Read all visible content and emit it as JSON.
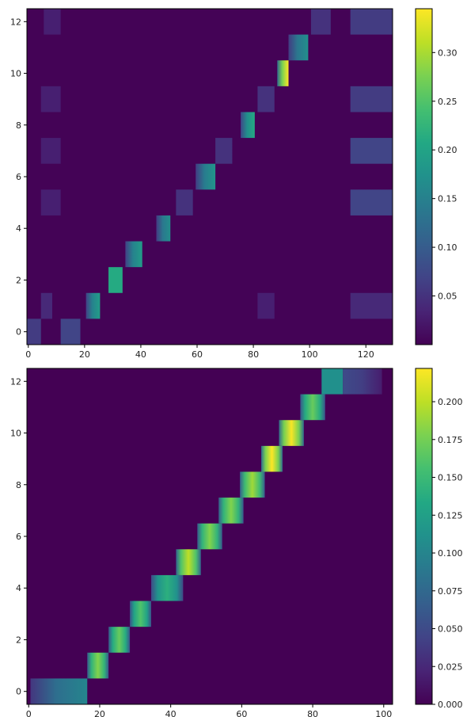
{
  "chart_data": [
    {
      "type": "heatmap",
      "colormap": "viridis",
      "x_ticks": [
        0,
        20,
        40,
        60,
        80,
        100,
        120
      ],
      "y_ticks": [
        0,
        2,
        4,
        6,
        8,
        10,
        12
      ],
      "xlim": [
        -0.5,
        129.5
      ],
      "ylim": [
        -0.5,
        12.5
      ],
      "colorbar": {
        "min": 0.0,
        "max": 0.345,
        "ticks": [
          "0.05",
          "0.10",
          "0.15",
          "0.20",
          "0.25",
          "0.30"
        ]
      },
      "background_value": 0.002,
      "blocks": [
        {
          "row": 0,
          "x": [
            -0.5,
            4.5
          ],
          "peak": 0.06,
          "ramp": "flat"
        },
        {
          "row": 0,
          "x": [
            11.5,
            18.5
          ],
          "peak": 0.07,
          "ramp": "flat"
        },
        {
          "row": 1,
          "x": [
            20.5,
            25.5
          ],
          "peak": 0.19,
          "ramp": "right"
        },
        {
          "row": 2,
          "x": [
            28.5,
            33.5
          ],
          "peak": 0.21,
          "ramp": "flat"
        },
        {
          "row": 3,
          "x": [
            34.5,
            40.5
          ],
          "peak": 0.19,
          "ramp": "right"
        },
        {
          "row": 4,
          "x": [
            45.5,
            50.5
          ],
          "peak": 0.17,
          "ramp": "right"
        },
        {
          "row": 5,
          "x": [
            52.5,
            58.5
          ],
          "peak": 0.05,
          "ramp": "flat"
        },
        {
          "row": 6,
          "x": [
            59.5,
            66.5
          ],
          "peak": 0.18,
          "ramp": "right"
        },
        {
          "row": 7,
          "x": [
            66.5,
            72.5
          ],
          "peak": 0.05,
          "ramp": "flat"
        },
        {
          "row": 8,
          "x": [
            75.5,
            80.5
          ],
          "peak": 0.21,
          "ramp": "right"
        },
        {
          "row": 9,
          "x": [
            81.5,
            87.5
          ],
          "peak": 0.05,
          "ramp": "flat"
        },
        {
          "row": 10,
          "x": [
            88.5,
            92.5
          ],
          "peak": 0.345,
          "ramp": "right"
        },
        {
          "row": 11,
          "x": [
            92.5,
            99.5
          ],
          "peak": 0.17,
          "ramp": "right"
        },
        {
          "row": 12,
          "x": [
            100.5,
            107.5
          ],
          "peak": 0.05,
          "ramp": "flat"
        },
        {
          "row": 12,
          "x": [
            114.5,
            129.5
          ],
          "peak": 0.06,
          "ramp": "flat"
        },
        {
          "row": 9,
          "x": [
            114.5,
            129.5
          ],
          "peak": 0.06,
          "ramp": "flat"
        },
        {
          "row": 7,
          "x": [
            114.5,
            129.5
          ],
          "peak": 0.07,
          "ramp": "flat"
        },
        {
          "row": 5,
          "x": [
            114.5,
            129.5
          ],
          "peak": 0.07,
          "ramp": "flat"
        },
        {
          "row": 1,
          "x": [
            114.5,
            129.5
          ],
          "peak": 0.04,
          "ramp": "flat"
        },
        {
          "row": 1,
          "x": [
            4.5,
            8.5
          ],
          "peak": 0.04,
          "ramp": "flat"
        },
        {
          "row": 5,
          "x": [
            4.5,
            11.5
          ],
          "peak": 0.03,
          "ramp": "flat"
        },
        {
          "row": 7,
          "x": [
            4.5,
            11.5
          ],
          "peak": 0.03,
          "ramp": "flat"
        },
        {
          "row": 9,
          "x": [
            4.5,
            11.5
          ],
          "peak": 0.03,
          "ramp": "flat"
        },
        {
          "row": 12,
          "x": [
            5.5,
            11.5
          ],
          "peak": 0.03,
          "ramp": "flat"
        },
        {
          "row": 1,
          "x": [
            81.5,
            87.5
          ],
          "peak": 0.03,
          "ramp": "flat"
        }
      ]
    },
    {
      "type": "heatmap",
      "colormap": "viridis",
      "x_ticks": [
        0,
        20,
        40,
        60,
        80,
        100
      ],
      "y_ticks": [
        0,
        2,
        4,
        6,
        8,
        10,
        12
      ],
      "xlim": [
        -0.5,
        102.5
      ],
      "ylim": [
        -0.5,
        12.5
      ],
      "colorbar": {
        "min": 0.0,
        "max": 0.222,
        "ticks": [
          "0.000",
          "0.025",
          "0.050",
          "0.075",
          "0.100",
          "0.125",
          "0.150",
          "0.175",
          "0.200"
        ]
      },
      "background_value": 0.0,
      "blocks": [
        {
          "row": 0,
          "x": [
            0.5,
            16.5
          ],
          "peak": 0.1,
          "ramp": "right"
        },
        {
          "row": 1,
          "x": [
            16.5,
            22.5
          ],
          "peak": 0.18,
          "ramp": "center"
        },
        {
          "row": 2,
          "x": [
            22.5,
            28.5
          ],
          "peak": 0.17,
          "ramp": "center"
        },
        {
          "row": 3,
          "x": [
            28.5,
            34.5
          ],
          "peak": 0.16,
          "ramp": "center"
        },
        {
          "row": 4,
          "x": [
            34.5,
            43.5
          ],
          "peak": 0.14,
          "ramp": "center"
        },
        {
          "row": 5,
          "x": [
            41.5,
            48.5
          ],
          "peak": 0.2,
          "ramp": "center"
        },
        {
          "row": 6,
          "x": [
            47.5,
            54.5
          ],
          "peak": 0.18,
          "ramp": "center"
        },
        {
          "row": 7,
          "x": [
            53.5,
            60.5
          ],
          "peak": 0.18,
          "ramp": "center"
        },
        {
          "row": 8,
          "x": [
            59.5,
            66.5
          ],
          "peak": 0.19,
          "ramp": "center"
        },
        {
          "row": 9,
          "x": [
            65.5,
            71.5
          ],
          "peak": 0.222,
          "ramp": "center"
        },
        {
          "row": 10,
          "x": [
            70.5,
            77.5
          ],
          "peak": 0.22,
          "ramp": "center"
        },
        {
          "row": 11,
          "x": [
            76.5,
            83.5
          ],
          "peak": 0.17,
          "ramp": "center"
        },
        {
          "row": 12,
          "x": [
            82.5,
            88.5
          ],
          "peak": 0.11,
          "ramp": "flat"
        },
        {
          "row": 12,
          "x": [
            88.5,
            99.5
          ],
          "peak": 0.05,
          "ramp": "left"
        }
      ]
    }
  ]
}
